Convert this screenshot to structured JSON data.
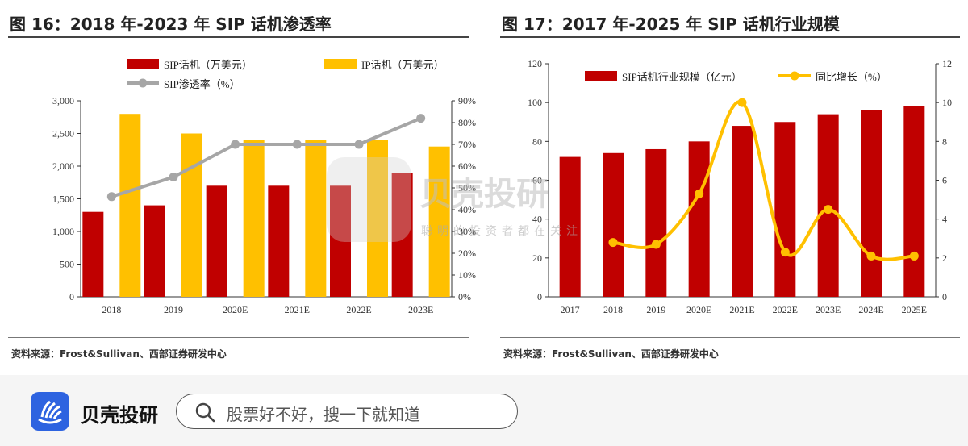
{
  "colors": {
    "red": "#c00000",
    "gold": "#ffc000",
    "gray": "#a6a6a6",
    "brand_blue": "#2d63e0"
  },
  "left_panel": {
    "title": "图 16：2018 年-2023 年 SIP 话机渗透率",
    "source": "资料来源：Frost&Sullivan、西部证券研发中心"
  },
  "right_panel": {
    "title": "图 17：2017 年-2025 年 SIP 话机行业规模",
    "source": "资料来源：Frost&Sullivan、西部证券研发中心"
  },
  "chart_data": [
    {
      "type": "bar",
      "categories": [
        "2018",
        "2019",
        "2020E",
        "2021E",
        "2022E",
        "2023E"
      ],
      "series": [
        {
          "name": "SIP话机（万美元）",
          "kind": "bar",
          "axis": "left",
          "color": "#c00000",
          "values": [
            1300,
            1400,
            1700,
            1700,
            1700,
            1900
          ]
        },
        {
          "name": "IP话机（万美元）",
          "kind": "bar",
          "axis": "left",
          "color": "#ffc000",
          "values": [
            2800,
            2500,
            2400,
            2400,
            2400,
            2300
          ]
        },
        {
          "name": "SIP渗透率（%）",
          "kind": "line",
          "axis": "right",
          "color": "#a6a6a6",
          "values": [
            46,
            55,
            70,
            70,
            70,
            82
          ]
        }
      ],
      "ylim": [
        0,
        3000
      ],
      "y_ticks": [
        "0",
        "500",
        "1,000",
        "1,500",
        "2,000",
        "2,500",
        "3,000"
      ],
      "y2lim": [
        0,
        90
      ],
      "y2_ticks": [
        "0%",
        "10%",
        "20%",
        "30%",
        "40%",
        "50%",
        "60%",
        "70%",
        "80%",
        "90%"
      ],
      "grid": false,
      "legend": "top"
    },
    {
      "type": "bar",
      "categories": [
        "2017",
        "2018",
        "2019",
        "2020E",
        "2021E",
        "2022E",
        "2023E",
        "2024E",
        "2025E"
      ],
      "series": [
        {
          "name": "SIP话机行业规模（亿元）",
          "kind": "bar",
          "axis": "left",
          "color": "#c00000",
          "values": [
            72,
            74,
            76,
            80,
            88,
            90,
            94,
            96,
            98
          ]
        },
        {
          "name": "同比增长（%）",
          "kind": "line",
          "axis": "right",
          "color": "#ffc000",
          "values": [
            null,
            2.8,
            2.7,
            5.3,
            10,
            2.3,
            4.5,
            2.1,
            2.1
          ]
        }
      ],
      "ylim": [
        0,
        120
      ],
      "y_ticks": [
        "0",
        "20",
        "40",
        "60",
        "80",
        "100",
        "120"
      ],
      "y2lim": [
        0,
        12
      ],
      "y2_ticks": [
        "0",
        "2",
        "4",
        "6",
        "8",
        "10",
        "12"
      ],
      "grid": false,
      "legend": "top"
    }
  ],
  "watermark": {
    "brand": "贝壳投研",
    "tagline": "聪明的投资者都在关注"
  },
  "footer": {
    "brand": "贝壳投研",
    "search_placeholder": "股票好不好，搜一下就知道"
  }
}
